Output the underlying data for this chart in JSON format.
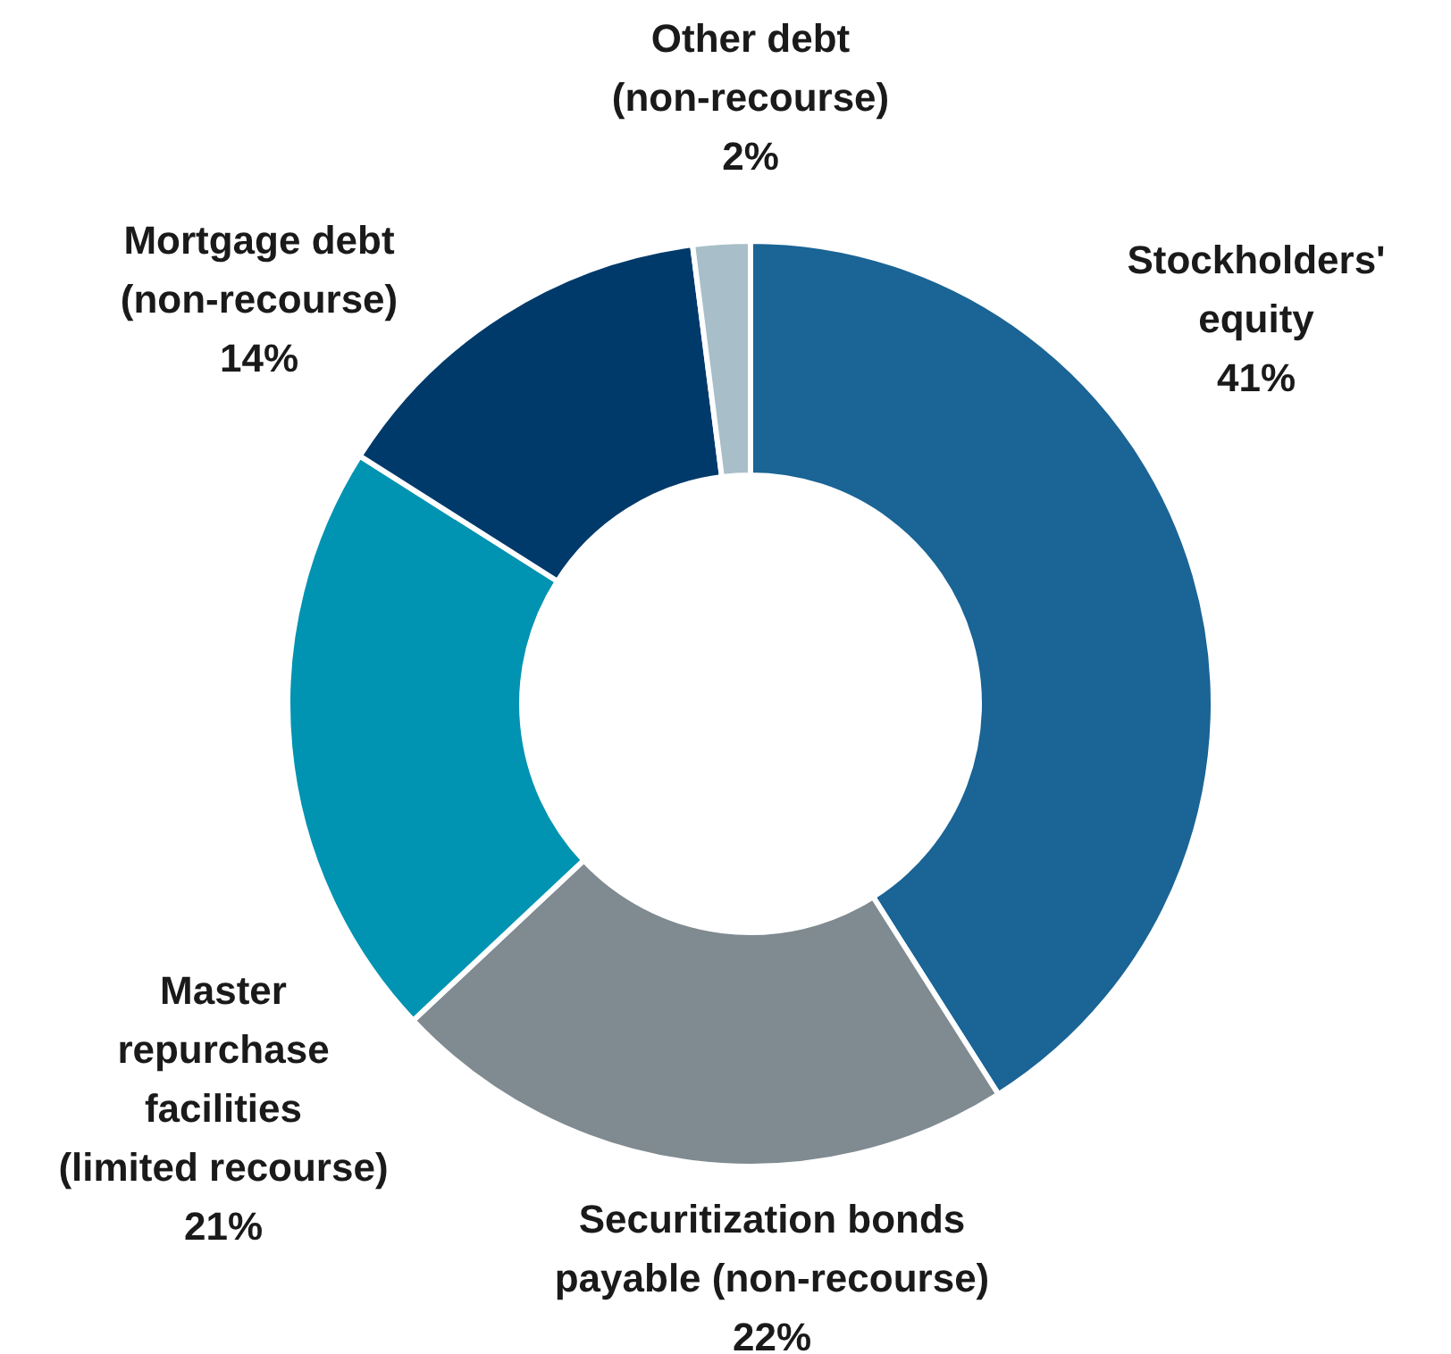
{
  "chart_data": {
    "type": "donut",
    "categories": [
      "Stockholders'\nequity",
      "Securitization bonds\npayable (non-recourse)",
      "Master\nrepurchase\nfacilities\n(limited recourse)",
      "Mortgage debt\n(non-recourse)",
      "Other debt\n(non-recourse)"
    ],
    "values": [
      41,
      22,
      21,
      14,
      2
    ],
    "value_labels": [
      "41%",
      "22%",
      "21%",
      "14%",
      "2%"
    ],
    "colors": [
      "#1a6496",
      "#7f8a91",
      "#0093b2",
      "#003a6b",
      "#a8bfc9"
    ],
    "legend": false
  }
}
